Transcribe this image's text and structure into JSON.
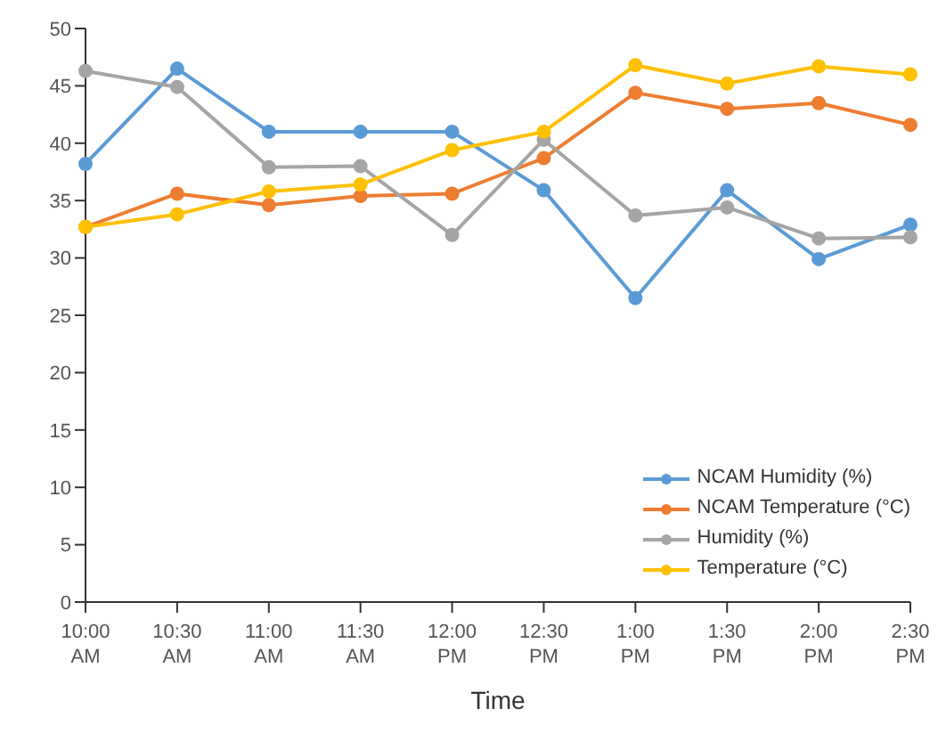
{
  "chart_data": {
    "type": "line",
    "xlabel": "Time",
    "categories": [
      "10:00 AM",
      "10:30 AM",
      "11:00 AM",
      "11:30 AM",
      "12:00 PM",
      "12:30 PM",
      "1:00 PM",
      "1:30 PM",
      "2:00 PM",
      "2:30 PM"
    ],
    "series": [
      {
        "name": "NCAM Humidity (%)",
        "color": "#5b9bd5",
        "values": [
          38.2,
          46.5,
          41.0,
          41.0,
          41.0,
          35.9,
          26.5,
          35.9,
          29.9,
          32.9
        ]
      },
      {
        "name": "NCAM Temperature (°C)",
        "color": "#ed7d31",
        "values": [
          32.7,
          35.6,
          34.6,
          35.4,
          35.6,
          38.7,
          44.4,
          43.0,
          43.5,
          41.6
        ]
      },
      {
        "name": "Humidity (%)",
        "color": "#a5a5a5",
        "values": [
          46.3,
          44.9,
          37.9,
          38.0,
          32.0,
          40.3,
          33.7,
          34.4,
          31.7,
          31.8
        ]
      },
      {
        "name": "Temperature (°C)",
        "color": "#ffc000",
        "values": [
          32.7,
          33.8,
          35.8,
          36.4,
          39.4,
          41.0,
          46.8,
          45.2,
          46.7,
          46.0
        ]
      }
    ],
    "ylim": [
      0,
      50
    ],
    "yticks": [
      0,
      5,
      10,
      15,
      20,
      25,
      30,
      35,
      40,
      45,
      50
    ],
    "grid": false,
    "legend": "bottom right",
    "marker": "circle",
    "line_style": "solid"
  }
}
